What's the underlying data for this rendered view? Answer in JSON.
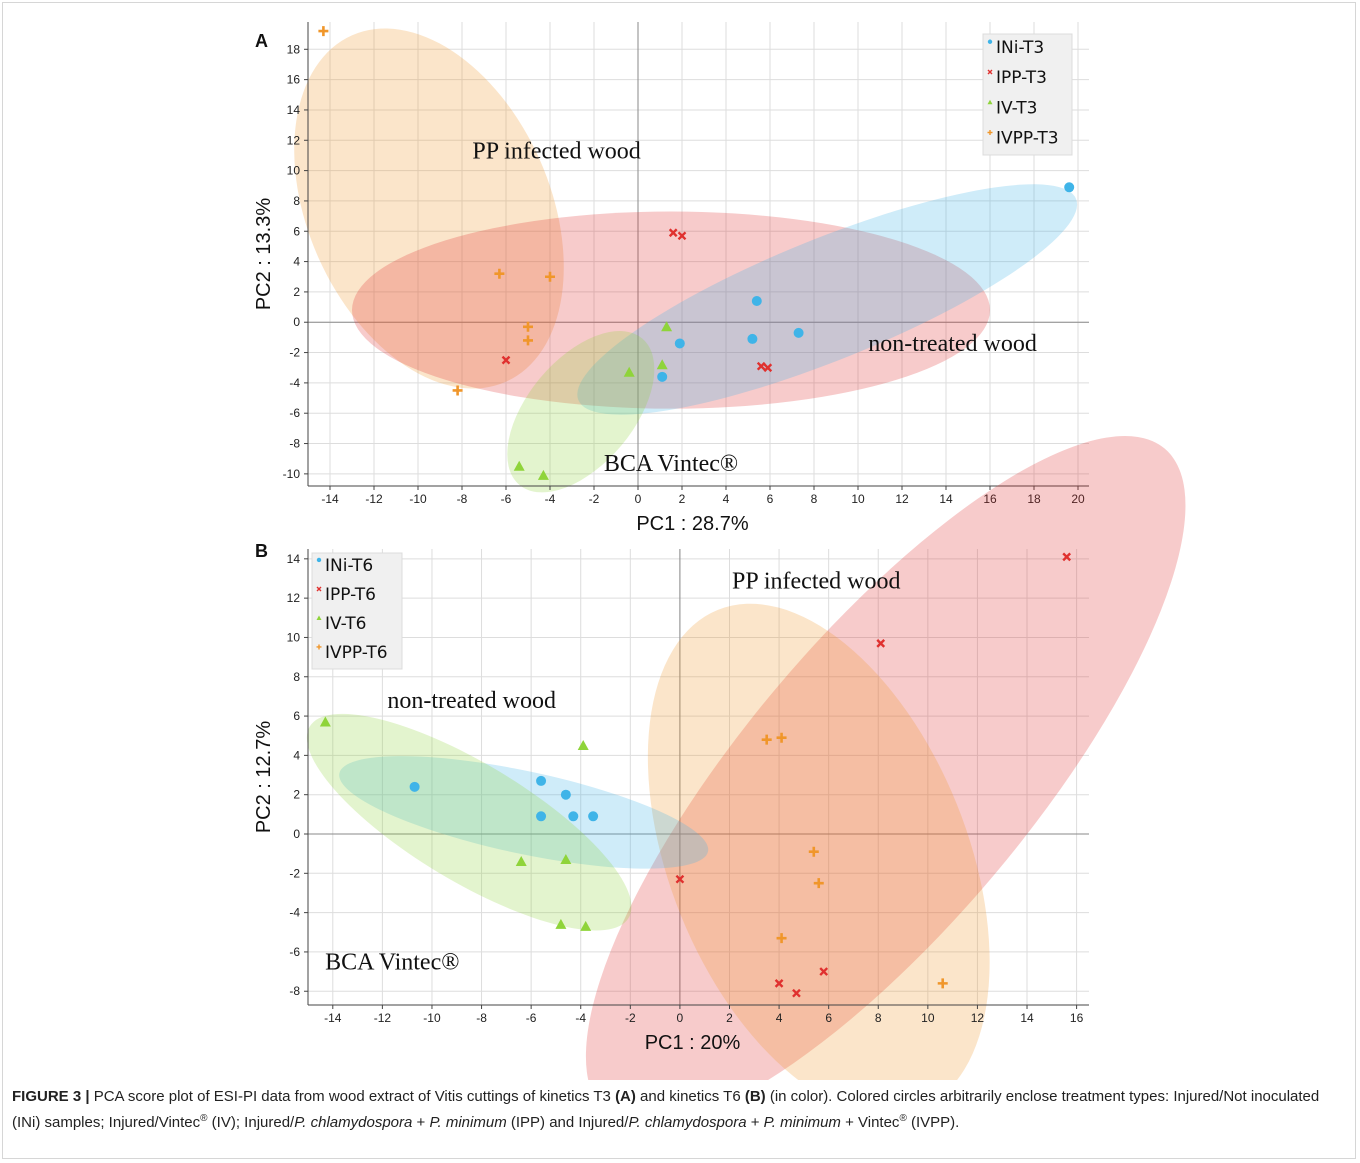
{
  "figure": {
    "caption_lead": "FIGURE 3 |",
    "caption_parts": [
      {
        "t": " PCA score plot of ESI-PI data from wood extract of Vitis cuttings of kinetics T3 "
      },
      {
        "t": "(A)",
        "b": true
      },
      {
        "t": " and kinetics T6 "
      },
      {
        "t": "(B)",
        "b": true
      },
      {
        "t": " (in color). Colored circles arbitrarily enclose treatment types: Injured/Not inoculated (INi) samples; Injured/Vintec"
      },
      {
        "t": "®",
        "sup": true
      },
      {
        "t": " (IV); Injured/"
      },
      {
        "t": "P. chlamydospora",
        "i": true
      },
      {
        "t": " + "
      },
      {
        "t": "P. minimum",
        "i": true
      },
      {
        "t": " (IPP) and Injured/"
      },
      {
        "t": "P. chlamydospora",
        "i": true
      },
      {
        "t": " + "
      },
      {
        "t": "P. minimum",
        "i": true
      },
      {
        "t": " + Vintec"
      },
      {
        "t": "®",
        "sup": true
      },
      {
        "t": " (IVPP)."
      }
    ]
  },
  "colors": {
    "INi": "#3fb4e8",
    "IPP": "#e0312f",
    "IV": "#8fd43a",
    "IVPP": "#f0962a",
    "grid": "#dddddd",
    "axis": "#444444"
  },
  "chart_data": [
    {
      "panel_label": "A",
      "type": "scatter",
      "xlabel": "PC1 : 28.7%",
      "ylabel": "PC2 : 13.3%",
      "xlim": [
        -15,
        20.5
      ],
      "ylim": [
        -10.8,
        19.8
      ],
      "xticks": [
        -14,
        -12,
        -10,
        -8,
        -6,
        -4,
        -2,
        0,
        2,
        4,
        6,
        8,
        10,
        12,
        14,
        16,
        18,
        20
      ],
      "yticks": [
        -10,
        -8,
        -6,
        -4,
        -2,
        0,
        2,
        4,
        6,
        8,
        10,
        12,
        14,
        16,
        18
      ],
      "grid": true,
      "legend_position": "top-right",
      "series": [
        {
          "name": "INi-T3",
          "key": "INi",
          "marker": "circle",
          "points": [
            [
              19.6,
              8.9
            ],
            [
              5.4,
              1.4
            ],
            [
              7.3,
              -0.7
            ],
            [
              5.2,
              -1.1
            ],
            [
              1.9,
              -1.4
            ],
            [
              1.1,
              -3.6
            ]
          ]
        },
        {
          "name": "IPP-T3",
          "key": "IPP",
          "marker": "x",
          "points": [
            [
              1.6,
              5.9
            ],
            [
              2.0,
              5.7
            ],
            [
              -6.0,
              -2.5
            ],
            [
              5.6,
              -2.9
            ],
            [
              5.9,
              -3.0
            ]
          ]
        },
        {
          "name": "IV-T3",
          "key": "IV",
          "marker": "triangle",
          "points": [
            [
              1.3,
              -0.3
            ],
            [
              -0.4,
              -3.3
            ],
            [
              1.1,
              -2.8
            ],
            [
              -5.4,
              -9.5
            ],
            [
              -4.3,
              -10.1
            ]
          ]
        },
        {
          "name": "IVPP-T3",
          "key": "IVPP",
          "marker": "plus",
          "points": [
            [
              -14.3,
              19.2
            ],
            [
              -6.3,
              3.2
            ],
            [
              -4.0,
              3.0
            ],
            [
              -5.0,
              -0.3
            ],
            [
              -5.0,
              -1.2
            ],
            [
              -8.2,
              -4.5
            ]
          ]
        }
      ],
      "ellipses": [
        {
          "key": "IVPP",
          "center": [
            -9.5,
            7.5
          ],
          "rx": 5.5,
          "ry": 12.5,
          "rotate": -24
        },
        {
          "key": "IPP",
          "center": [
            1.5,
            0.8
          ],
          "rx": 14.5,
          "ry": 6.5,
          "rotate": 0
        },
        {
          "key": "INi",
          "center": [
            8.6,
            1.5
          ],
          "rx": 12.2,
          "ry": 4.0,
          "rotate": -22
        },
        {
          "key": "IV",
          "center": [
            -2.6,
            -5.9
          ],
          "rx": 2.4,
          "ry": 6.3,
          "rotate": 40
        }
      ],
      "annotations": [
        {
          "text": "PP infected wood",
          "at": [
            -3.7,
            10.8
          ]
        },
        {
          "text": "non-treated wood",
          "at": [
            14.3,
            -1.9
          ]
        },
        {
          "text": "BCA Vintec®",
          "at": [
            1.5,
            -9.8
          ]
        }
      ]
    },
    {
      "panel_label": "B",
      "type": "scatter",
      "xlabel": "PC1 : 20%",
      "ylabel": "PC2 : 12.7%",
      "xlim": [
        -15,
        16.5
      ],
      "ylim": [
        -8.7,
        14.5
      ],
      "xticks": [
        -14,
        -12,
        -10,
        -8,
        -6,
        -4,
        -2,
        0,
        2,
        4,
        6,
        8,
        10,
        12,
        14,
        16
      ],
      "yticks": [
        -8,
        -6,
        -4,
        -2,
        0,
        2,
        4,
        6,
        8,
        10,
        12,
        14
      ],
      "grid": true,
      "legend_position": "top-left",
      "series": [
        {
          "name": "INi-T6",
          "key": "INi",
          "marker": "circle",
          "points": [
            [
              -10.7,
              2.4
            ],
            [
              -5.6,
              2.7
            ],
            [
              -4.6,
              2.0
            ],
            [
              -5.6,
              0.9
            ],
            [
              -4.3,
              0.9
            ],
            [
              -3.5,
              0.9
            ]
          ]
        },
        {
          "name": "IPP-T6",
          "key": "IPP",
          "marker": "x",
          "points": [
            [
              15.6,
              14.1
            ],
            [
              8.1,
              9.7
            ],
            [
              0.0,
              -2.3
            ],
            [
              5.8,
              -7.0
            ],
            [
              4.0,
              -7.6
            ],
            [
              4.7,
              -8.1
            ]
          ]
        },
        {
          "name": "IV-T6",
          "key": "IV",
          "marker": "triangle",
          "points": [
            [
              -14.3,
              5.7
            ],
            [
              -3.9,
              4.5
            ],
            [
              -6.4,
              -1.4
            ],
            [
              -4.6,
              -1.3
            ],
            [
              -4.8,
              -4.6
            ],
            [
              -3.8,
              -4.7
            ]
          ]
        },
        {
          "name": "IVPP-T6",
          "key": "IVPP",
          "marker": "plus",
          "points": [
            [
              3.5,
              4.8
            ],
            [
              4.1,
              4.9
            ],
            [
              5.4,
              -0.9
            ],
            [
              5.6,
              -2.5
            ],
            [
              4.1,
              -5.3
            ],
            [
              10.6,
              -7.6
            ]
          ]
        }
      ],
      "ellipses": [
        {
          "key": "IPP",
          "center": [
            8.3,
            2.7
          ],
          "rx": 17.5,
          "ry": 7.3,
          "rotate": -50
        },
        {
          "key": "IVPP",
          "center": [
            5.6,
            -1.3
          ],
          "rx": 6.0,
          "ry": 13.7,
          "rotate": -22
        },
        {
          "key": "INi",
          "center": [
            -6.3,
            1.1
          ],
          "rx": 7.6,
          "ry": 2.1,
          "rotate": 12
        },
        {
          "key": "IV",
          "center": [
            -8.5,
            0.6
          ],
          "rx": 7.5,
          "ry": 3.0,
          "rotate": 31
        }
      ],
      "annotations": [
        {
          "text": "PP infected wood",
          "at": [
            5.5,
            12.5
          ]
        },
        {
          "text": "non-treated wood",
          "at": [
            -8.4,
            6.4
          ]
        },
        {
          "text": "BCA Vintec®",
          "at": [
            -11.6,
            -6.9
          ]
        }
      ]
    }
  ]
}
